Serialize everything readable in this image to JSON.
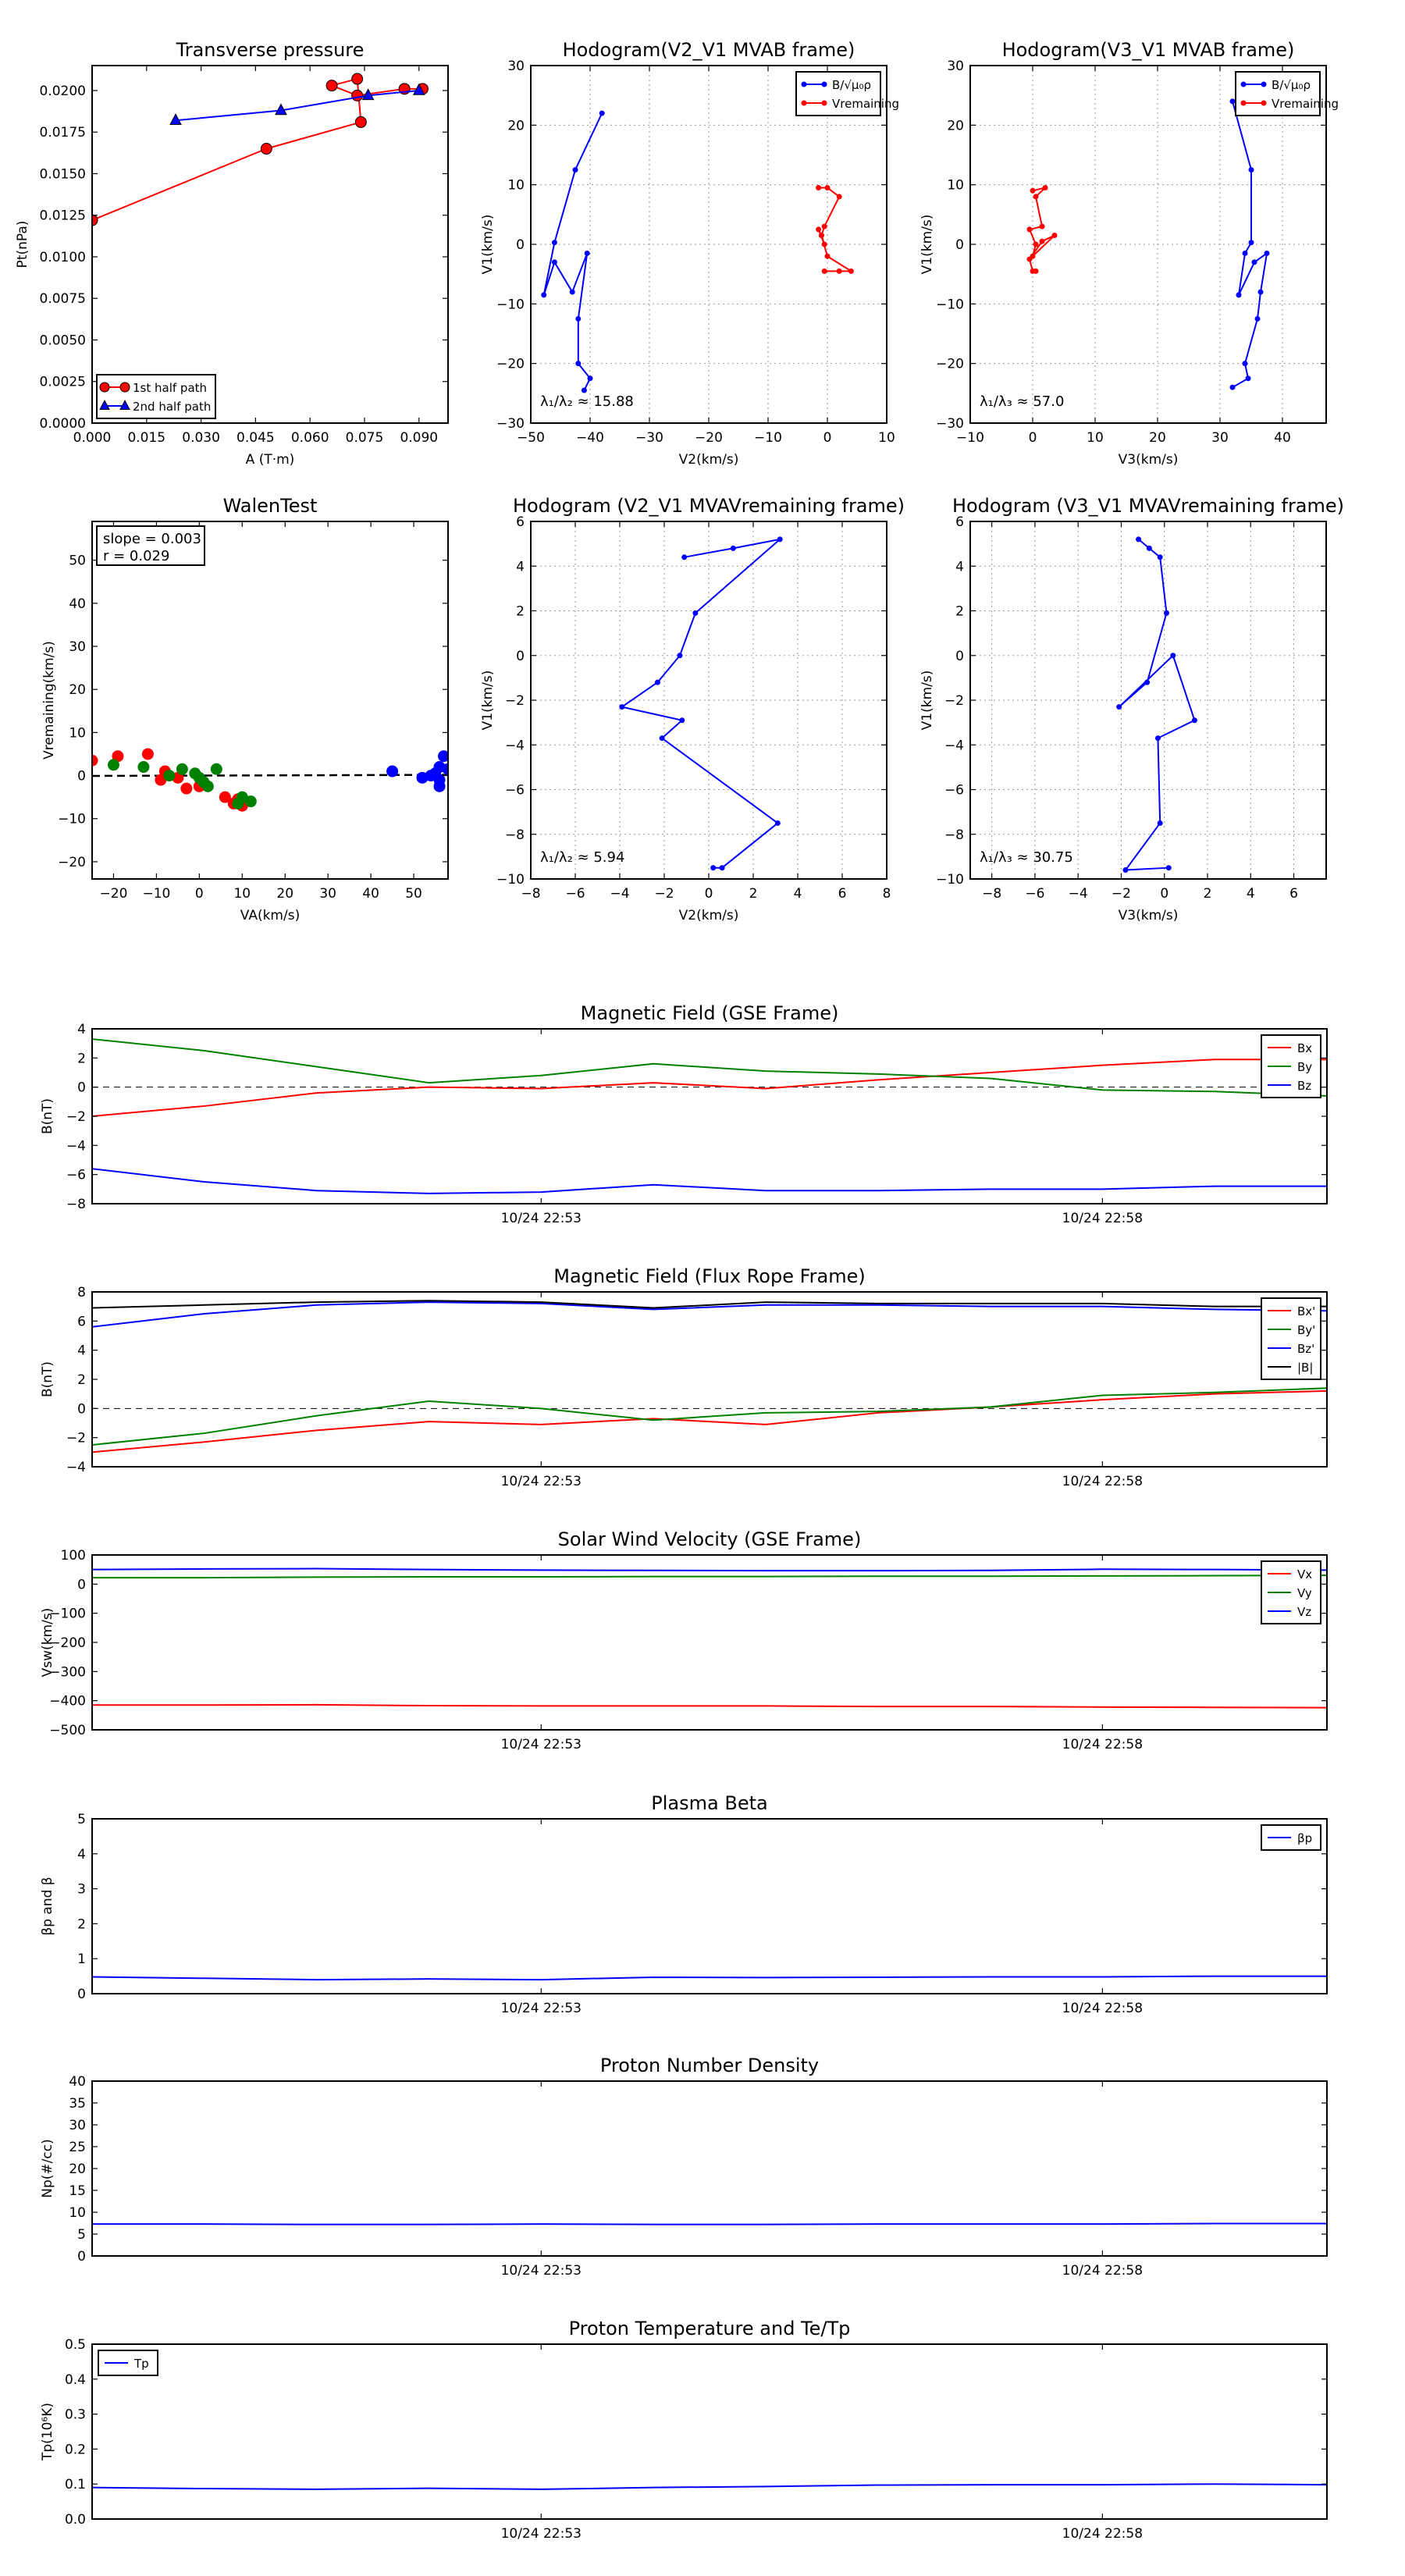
{
  "colors": {
    "red": "#ff0000",
    "blue": "#0000ff",
    "green": "#008000",
    "black": "#000000",
    "axis": "#000000",
    "grid": "#999999"
  },
  "chart_data": [
    {
      "id": "transverse-pressure",
      "type": "scatter",
      "title": "Transverse pressure",
      "xlabel": "A (T·m)",
      "ylabel": "Pt(nPa)",
      "xlim": [
        0,
        0.098
      ],
      "ylim": [
        0,
        0.0215
      ],
      "xticks": [
        0.0,
        0.015,
        0.03,
        0.045,
        0.06,
        0.075,
        0.09
      ],
      "xticklabels": [
        "0.000",
        "0.015",
        "0.030",
        "0.045",
        "0.060",
        "0.075",
        "0.090"
      ],
      "yticks": [
        0,
        0.0025,
        0.005,
        0.0075,
        0.01,
        0.0125,
        0.015,
        0.0175,
        0.02
      ],
      "yticklabels": [
        "0.0000",
        "0.0025",
        "0.0050",
        "0.0075",
        "0.0100",
        "0.0125",
        "0.0150",
        "0.0175",
        "0.0200"
      ],
      "grid": false,
      "legend": "lower-left",
      "series": [
        {
          "name": "1st half path",
          "color": "#ff0000",
          "marker": "circle",
          "x": [
            0.0,
            0.048,
            0.074,
            0.073,
            0.066,
            0.073,
            0.086,
            0.091
          ],
          "y": [
            0.0122,
            0.0165,
            0.0181,
            0.0207,
            0.0203,
            0.0197,
            0.0201,
            0.0201
          ]
        },
        {
          "name": "2nd half path",
          "color": "#0000ff",
          "marker": "triangle",
          "x": [
            0.023,
            0.052,
            0.076,
            0.09
          ],
          "y": [
            0.0182,
            0.0188,
            0.0197,
            0.02
          ]
        }
      ]
    },
    {
      "id": "hodogram-v2v1-mvab",
      "type": "line",
      "title": "Hodogram(V2_V1 MVAB frame)",
      "xlabel": "V2(km/s)",
      "ylabel": "V1(km/s)",
      "xlim": [
        -50,
        10
      ],
      "ylim": [
        -30,
        30
      ],
      "xticks": [
        -50,
        -40,
        -30,
        -20,
        -10,
        0,
        10
      ],
      "yticks": [
        -30,
        -20,
        -10,
        0,
        10,
        20,
        30
      ],
      "grid": true,
      "legend": "top-right",
      "annotation": "λ₁/λ₂ ≈ 15.88",
      "series": [
        {
          "name": "B/√μ₀ρ",
          "color": "#0000ff",
          "x": [
            -38.0,
            -42.5,
            -46.0,
            -47.8,
            -46.0,
            -43.0,
            -40.5,
            -42.0,
            -42.0,
            -40.0,
            -41.0
          ],
          "y": [
            22.0,
            12.5,
            0.3,
            -8.5,
            -3.0,
            -8.0,
            -1.5,
            -12.5,
            -20.0,
            -22.5,
            -24.5
          ]
        },
        {
          "name": "Vremaining",
          "color": "#ff0000",
          "x": [
            -1.5,
            0.0,
            2.0,
            -0.5,
            -1.0,
            -1.5,
            -0.5,
            -1.0,
            0.0,
            4.0,
            2.0,
            -0.5
          ],
          "y": [
            9.5,
            9.5,
            8.0,
            3.0,
            1.5,
            2.5,
            0.0,
            1.5,
            -2.0,
            -4.5,
            -4.5,
            -4.5
          ]
        }
      ]
    },
    {
      "id": "hodogram-v3v1-mvab",
      "type": "line",
      "title": "Hodogram(V3_V1 MVAB frame)",
      "xlabel": "V3(km/s)",
      "ylabel": "V1(km/s)",
      "xlim": [
        -10,
        47
      ],
      "ylim": [
        -30,
        30
      ],
      "xticks": [
        -10,
        0,
        10,
        20,
        30,
        40
      ],
      "yticks": [
        -30,
        -20,
        -10,
        0,
        10,
        20,
        30
      ],
      "grid": true,
      "legend": "top-right",
      "annotation": "λ₁/λ₃ ≈ 57.0",
      "series": [
        {
          "name": "B/√μ₀ρ",
          "color": "#0000ff",
          "x": [
            32.0,
            35.0,
            35.0,
            34.0,
            33.0,
            35.5,
            37.5,
            36.5,
            36.0,
            34.0,
            34.5,
            32.0
          ],
          "y": [
            24.0,
            12.5,
            0.3,
            -1.5,
            -8.5,
            -3.0,
            -1.5,
            -8.0,
            -12.5,
            -20.0,
            -22.5,
            -24.0
          ]
        },
        {
          "name": "Vremaining",
          "color": "#ff0000",
          "x": [
            0.0,
            2.0,
            0.5,
            1.5,
            -0.5,
            0.5,
            0.0,
            3.5,
            1.5,
            -0.5,
            0.0,
            0.5
          ],
          "y": [
            9.0,
            9.5,
            8.0,
            3.0,
            2.5,
            0.0,
            -2.0,
            1.5,
            0.5,
            -2.5,
            -4.5,
            -4.5
          ]
        }
      ]
    },
    {
      "id": "walen-test",
      "type": "scatter",
      "title": "WalenTest",
      "xlabel": "VA(km/s)",
      "ylabel": "Vremaining(km/s)",
      "xlim": [
        -25,
        58
      ],
      "ylim": [
        -24,
        59
      ],
      "xticks": [
        -20,
        -10,
        0,
        10,
        20,
        30,
        40,
        50
      ],
      "yticks": [
        -20,
        -10,
        0,
        10,
        20,
        30,
        40,
        50
      ],
      "grid": false,
      "annotation_lines": [
        "slope = 0.003",
        "r = 0.029"
      ],
      "slope": 0.003,
      "r": 0.029,
      "series": [
        {
          "name": "red",
          "color": "#ff0000",
          "x": [
            -25,
            -19,
            -12,
            -9,
            -8,
            -5,
            -3,
            0,
            6,
            9,
            10,
            8
          ],
          "y": [
            3.5,
            4.5,
            5.0,
            -1.0,
            1.0,
            -0.5,
            -3.0,
            -2.5,
            -5.0,
            -5.5,
            -7.0,
            -6.5
          ]
        },
        {
          "name": "green",
          "color": "#008000",
          "x": [
            -20,
            -13,
            -7,
            -4,
            -1,
            0,
            1,
            4,
            10,
            12,
            9,
            2
          ],
          "y": [
            2.5,
            2.0,
            0.0,
            1.5,
            0.5,
            -0.5,
            -1.5,
            1.5,
            -5.0,
            -6.0,
            -6.5,
            -2.5
          ]
        },
        {
          "name": "blue",
          "color": "#0000ff",
          "x": [
            45,
            52,
            54,
            55,
            56,
            56,
            57,
            58,
            56
          ],
          "y": [
            1.0,
            -0.5,
            0.0,
            0.5,
            2.0,
            -2.5,
            4.5,
            1.5,
            -1.0
          ]
        }
      ]
    },
    {
      "id": "hodogram-v2v1-mvav",
      "type": "line",
      "title": "Hodogram (V2_V1 MVAVremaining frame)",
      "xlabel": "V2(km/s)",
      "ylabel": "V1(km/s)",
      "xlim": [
        -8,
        8
      ],
      "ylim": [
        -10,
        6
      ],
      "xticks": [
        -8,
        -6,
        -4,
        -2,
        0,
        2,
        4,
        6,
        8
      ],
      "yticks": [
        -10,
        -8,
        -6,
        -4,
        -2,
        0,
        2,
        4,
        6
      ],
      "grid": true,
      "annotation": "λ₁/λ₂ ≈ 5.94",
      "series": [
        {
          "name": "V",
          "color": "#0000ff",
          "x": [
            -1.1,
            1.1,
            3.2,
            -0.6,
            -1.3,
            -2.3,
            -3.9,
            -1.2,
            -2.1,
            3.1,
            0.6,
            0.2
          ],
          "y": [
            4.4,
            4.8,
            5.2,
            1.9,
            0.0,
            -1.2,
            -2.3,
            -2.9,
            -3.7,
            -7.5,
            -9.5,
            -9.5
          ]
        }
      ]
    },
    {
      "id": "hodogram-v3v1-mvav",
      "type": "line",
      "title": "Hodogram (V3_V1 MVAVremaining frame)",
      "xlabel": "V3(km/s)",
      "ylabel": "V1(km/s)",
      "xlim": [
        -9,
        7.5
      ],
      "ylim": [
        -10,
        6
      ],
      "xticks": [
        -8,
        -6,
        -4,
        -2,
        0,
        2,
        4,
        6
      ],
      "yticks": [
        -10,
        -8,
        -6,
        -4,
        -2,
        0,
        2,
        4,
        6
      ],
      "grid": true,
      "annotation": "λ₁/λ₃ ≈ 30.75",
      "series": [
        {
          "name": "V",
          "color": "#0000ff",
          "x": [
            -1.2,
            -0.7,
            -0.2,
            0.1,
            -0.8,
            -2.1,
            0.4,
            1.4,
            -0.3,
            -0.2,
            -1.8,
            0.2
          ],
          "y": [
            5.2,
            4.8,
            4.4,
            1.9,
            -1.2,
            -2.3,
            0.0,
            -2.9,
            -3.7,
            -7.5,
            -9.6,
            -9.5
          ]
        }
      ]
    },
    {
      "id": "magnetic-field-gse",
      "type": "line",
      "title": "Magnetic Field (GSE Frame)",
      "xlabel": "",
      "ylabel": "B(nT)",
      "xlim": [
        0,
        11
      ],
      "ylim": [
        -8,
        4
      ],
      "yticks": [
        -8,
        -6,
        -4,
        -2,
        0,
        2,
        4
      ],
      "xticks": [
        4,
        9
      ],
      "xticklabels": [
        "10/24 22:53",
        "10/24 22:58"
      ],
      "zero_line": true,
      "grid": false,
      "legend": "top-right",
      "x": [
        0,
        1,
        2,
        3,
        4,
        5,
        6,
        7,
        8,
        9,
        10,
        11
      ],
      "series": [
        {
          "name": "Bx",
          "color": "#ff0000",
          "values": [
            -2.0,
            -1.3,
            -0.4,
            0.0,
            -0.1,
            0.3,
            -0.1,
            0.5,
            1.0,
            1.5,
            1.9,
            1.9
          ]
        },
        {
          "name": "By",
          "color": "#008000",
          "values": [
            3.3,
            2.5,
            1.4,
            0.3,
            0.8,
            1.6,
            1.1,
            0.9,
            0.6,
            -0.2,
            -0.3,
            -0.6
          ]
        },
        {
          "name": "Bz",
          "color": "#0000ff",
          "values": [
            -5.6,
            -6.5,
            -7.1,
            -7.3,
            -7.2,
            -6.7,
            -7.1,
            -7.1,
            -7.0,
            -7.0,
            -6.8,
            -6.8
          ]
        }
      ]
    },
    {
      "id": "magnetic-field-flux-rope",
      "type": "line",
      "title": "Magnetic Field (Flux Rope Frame)",
      "xlabel": "",
      "ylabel": "B(nT)",
      "xlim": [
        0,
        11
      ],
      "ylim": [
        -4,
        8
      ],
      "yticks": [
        -4,
        -2,
        0,
        2,
        4,
        6,
        8
      ],
      "xticks": [
        4,
        9
      ],
      "xticklabels": [
        "10/24 22:53",
        "10/24 22:58"
      ],
      "zero_line": true,
      "grid": false,
      "legend": "top-right",
      "x": [
        0,
        1,
        2,
        3,
        4,
        5,
        6,
        7,
        8,
        9,
        10,
        11
      ],
      "series": [
        {
          "name": "Bx'",
          "color": "#ff0000",
          "values": [
            -3.0,
            -2.3,
            -1.5,
            -0.9,
            -1.1,
            -0.7,
            -1.1,
            -0.3,
            0.1,
            0.6,
            1.0,
            1.2
          ]
        },
        {
          "name": "By'",
          "color": "#008000",
          "values": [
            -2.5,
            -1.7,
            -0.5,
            0.5,
            0.0,
            -0.8,
            -0.3,
            -0.2,
            0.1,
            0.9,
            1.1,
            1.4
          ]
        },
        {
          "name": "Bz'",
          "color": "#0000ff",
          "values": [
            5.6,
            6.5,
            7.1,
            7.3,
            7.2,
            6.8,
            7.1,
            7.1,
            7.0,
            7.0,
            6.8,
            6.7
          ]
        },
        {
          "name": "|B|",
          "color": "#000000",
          "values": [
            6.9,
            7.1,
            7.3,
            7.4,
            7.3,
            6.9,
            7.3,
            7.2,
            7.2,
            7.2,
            7.0,
            7.0
          ]
        }
      ]
    },
    {
      "id": "solar-wind-velocity",
      "type": "line",
      "title": "Solar Wind Velocity (GSE Frame)",
      "xlabel": "",
      "ylabel": "Vsw(km/s)",
      "xlim": [
        0,
        11
      ],
      "ylim": [
        -500,
        100
      ],
      "yticks": [
        -500,
        -400,
        -300,
        -200,
        -100,
        0,
        100
      ],
      "xticks": [
        4,
        9
      ],
      "xticklabels": [
        "10/24 22:53",
        "10/24 22:58"
      ],
      "grid": false,
      "legend": "top-right",
      "x": [
        0,
        1,
        2,
        3,
        4,
        5,
        6,
        7,
        8,
        9,
        10,
        11
      ],
      "series": [
        {
          "name": "Vx",
          "color": "#ff0000",
          "values": [
            -415,
            -415,
            -414,
            -417,
            -418,
            -418,
            -418,
            -420,
            -420,
            -422,
            -423,
            -424
          ]
        },
        {
          "name": "Vy",
          "color": "#008000",
          "values": [
            22,
            22,
            24,
            25,
            25,
            26,
            26,
            27,
            27,
            28,
            29,
            30
          ]
        },
        {
          "name": "Vz",
          "color": "#0000ff",
          "values": [
            50,
            52,
            53,
            50,
            48,
            47,
            46,
            46,
            47,
            51,
            50,
            48
          ]
        }
      ]
    },
    {
      "id": "plasma-beta",
      "type": "line",
      "title": "Plasma Beta",
      "xlabel": "",
      "ylabel": "βp and β",
      "xlim": [
        0,
        11
      ],
      "ylim": [
        0,
        5
      ],
      "yticks": [
        0,
        1,
        2,
        3,
        4,
        5
      ],
      "xticks": [
        4,
        9
      ],
      "xticklabels": [
        "10/24 22:53",
        "10/24 22:58"
      ],
      "grid": false,
      "legend": "top-right",
      "x": [
        0,
        1,
        2,
        3,
        4,
        5,
        6,
        7,
        8,
        9,
        10,
        11
      ],
      "series": [
        {
          "name": "βp",
          "color": "#0000ff",
          "values": [
            0.48,
            0.44,
            0.4,
            0.42,
            0.4,
            0.47,
            0.46,
            0.47,
            0.48,
            0.48,
            0.5,
            0.5
          ]
        }
      ]
    },
    {
      "id": "proton-number-density",
      "type": "line",
      "title": "Proton Number Density",
      "xlabel": "",
      "ylabel": "Np(#/cc)",
      "xlim": [
        0,
        11
      ],
      "ylim": [
        0,
        40
      ],
      "yticks": [
        0,
        5,
        10,
        15,
        20,
        25,
        30,
        35,
        40
      ],
      "xticks": [
        4,
        9
      ],
      "xticklabels": [
        "10/24 22:53",
        "10/24 22:58"
      ],
      "grid": false,
      "x": [
        0,
        1,
        2,
        3,
        4,
        5,
        6,
        7,
        8,
        9,
        10,
        11
      ],
      "series": [
        {
          "name": "Np",
          "color": "#0000ff",
          "values": [
            7.3,
            7.3,
            7.2,
            7.2,
            7.3,
            7.2,
            7.2,
            7.3,
            7.3,
            7.3,
            7.4,
            7.4
          ]
        }
      ]
    },
    {
      "id": "proton-temperature",
      "type": "line",
      "title": "Proton Temperature and Te/Tp",
      "xlabel": "",
      "ylabel": "Tp(10⁶K)",
      "xlim": [
        0,
        11
      ],
      "ylim": [
        0,
        0.5
      ],
      "yticks": [
        0,
        0.1,
        0.2,
        0.3,
        0.4,
        0.5
      ],
      "yticklabels": [
        "0.0",
        "0.1",
        "0.2",
        "0.3",
        "0.4",
        "0.5"
      ],
      "xticks": [
        4,
        9
      ],
      "xticklabels": [
        "10/24 22:53",
        "10/24 22:58"
      ],
      "grid": false,
      "legend": "top-left",
      "x": [
        0,
        1,
        2,
        3,
        4,
        5,
        6,
        7,
        8,
        9,
        10,
        11
      ],
      "series": [
        {
          "name": "Tp",
          "color": "#0000ff",
          "values": [
            0.09,
            0.087,
            0.085,
            0.088,
            0.085,
            0.09,
            0.093,
            0.097,
            0.098,
            0.098,
            0.1,
            0.098
          ]
        }
      ]
    }
  ]
}
